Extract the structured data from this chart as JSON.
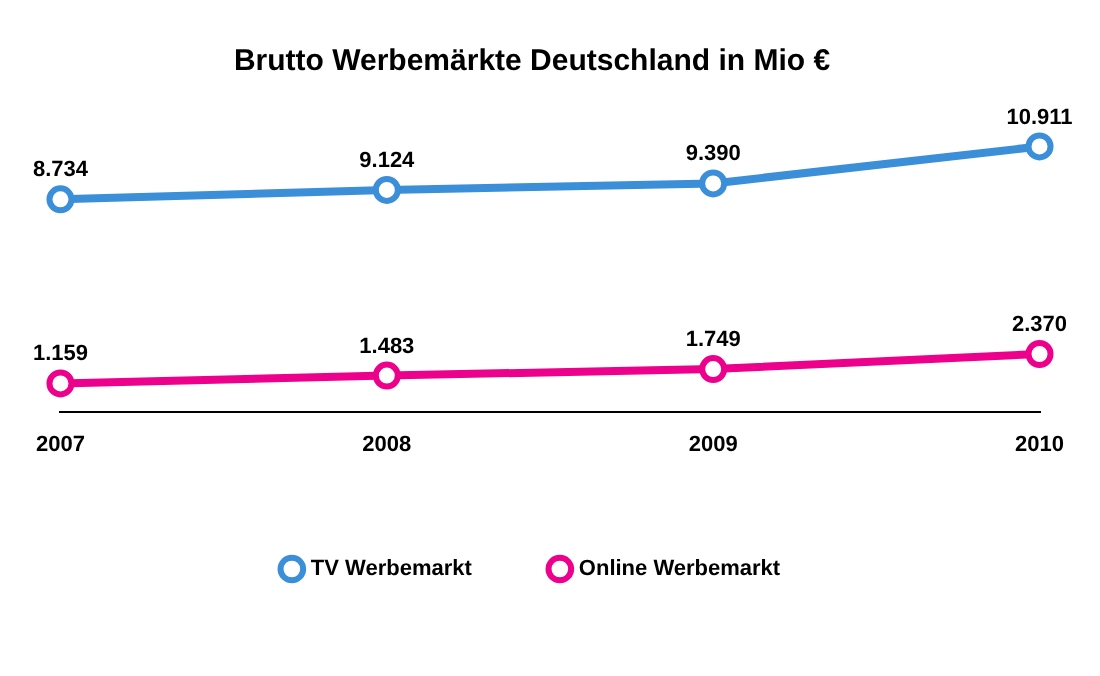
{
  "chart_data": {
    "type": "line",
    "title": "Brutto Werbemärkte Deutschland in Mio €",
    "categories": [
      "2007",
      "2008",
      "2009",
      "2010"
    ],
    "marker": "circle",
    "legend": "bottom",
    "grid": false,
    "tick_labels": "x",
    "series": [
      {
        "name": "TV Werbemarkt",
        "color": "#3b8fd8",
        "values": [
          8734,
          9124,
          9390,
          10911
        ],
        "value_labels": [
          "8.734",
          "9.124",
          "9.390",
          "10.911"
        ]
      },
      {
        "name": "Online Werbemarkt",
        "color": "#ec008c",
        "values": [
          1159,
          1483,
          1749,
          2370
        ],
        "value_labels": [
          "1.159",
          "1.483",
          "1.749",
          "2.370"
        ]
      }
    ]
  }
}
